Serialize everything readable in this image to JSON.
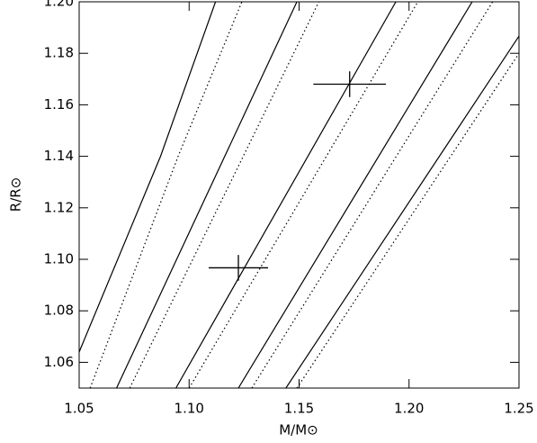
{
  "chart_data": {
    "type": "line",
    "xlabel": "M/M⊙",
    "ylabel": "R/R⊙",
    "xlim": [
      1.05,
      1.25
    ],
    "ylim": [
      1.05,
      1.2
    ],
    "xticks": [
      1.05,
      {
        "value": 1.1,
        "label": "1.10"
      },
      1.15,
      {
        "value": 1.2,
        "label": "1.20"
      },
      1.25
    ],
    "yticks": [
      1.06,
      1.08,
      {
        "value": 1.1,
        "label": "1.10"
      },
      1.12,
      1.14,
      1.16,
      1.18,
      {
        "value": 1.2,
        "label": "1.20"
      }
    ],
    "color": "#000000",
    "series": [
      {
        "x": [
          1.05,
          1.087,
          1.112
        ],
        "values": [
          1.064,
          1.14,
          1.2
        ],
        "dash": "solid"
      },
      {
        "x": [
          1.055,
          1.095,
          1.124
        ],
        "values": [
          1.05,
          1.14,
          1.2
        ],
        "dash": "dotted"
      },
      {
        "x": [
          1.067,
          1.149
        ],
        "values": [
          1.05,
          1.2
        ],
        "dash": "solid"
      },
      {
        "x": [
          1.073,
          1.159
        ],
        "values": [
          1.05,
          1.2
        ],
        "dash": "dotted"
      },
      {
        "x": [
          1.094,
          1.194
        ],
        "values": [
          1.05,
          1.2
        ],
        "dash": "solid"
      },
      {
        "x": [
          1.1,
          1.204
        ],
        "values": [
          1.05,
          1.2
        ],
        "dash": "dotted"
      },
      {
        "x": [
          1.1224,
          1.2287
        ],
        "values": [
          1.05,
          1.2
        ],
        "dash": "solid"
      },
      {
        "x": [
          1.1285,
          1.238
        ],
        "values": [
          1.05,
          1.2
        ],
        "dash": "dotted"
      },
      {
        "x": [
          1.144,
          1.25
        ],
        "values": [
          1.05,
          1.1867
        ],
        "dash": "solid"
      },
      {
        "x": [
          1.149,
          1.25
        ],
        "values": [
          1.05,
          1.18
        ],
        "dash": "dotted"
      }
    ],
    "points": {
      "x": [
        1.1224,
        1.173
      ],
      "values": [
        1.0967,
        1.168
      ],
      "xerr": [
        0.0135,
        0.0165
      ],
      "yerr": [
        0.005,
        0.005
      ]
    }
  }
}
